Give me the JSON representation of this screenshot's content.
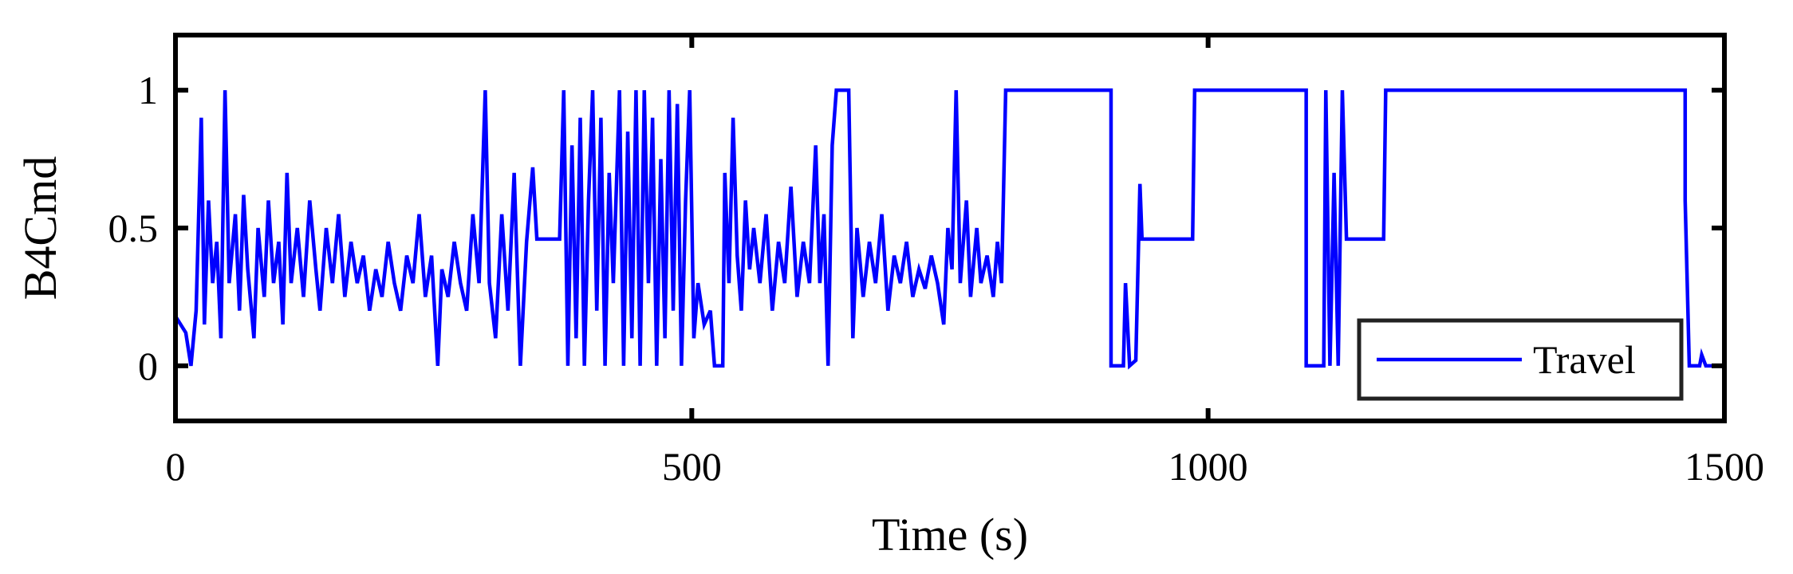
{
  "chart_data": {
    "type": "line",
    "xlabel": "Time (s)",
    "ylabel": "B4Cmd",
    "xlim": [
      0,
      1500
    ],
    "ylim": [
      -0.2,
      1.2
    ],
    "xticks": [
      0,
      500,
      1000,
      1500
    ],
    "yticks": [
      0,
      0.5,
      1
    ],
    "grid": false,
    "legend": "lower right",
    "x": [
      0,
      10,
      15,
      20,
      25,
      28,
      32,
      36,
      40,
      44,
      48,
      52,
      58,
      62,
      66,
      70,
      76,
      80,
      86,
      90,
      95,
      100,
      104,
      108,
      112,
      118,
      124,
      130,
      136,
      140,
      146,
      152,
      158,
      164,
      170,
      176,
      182,
      188,
      194,
      200,
      206,
      212,
      218,
      224,
      230,
      236,
      242,
      248,
      254,
      258,
      264,
      270,
      276,
      282,
      288,
      294,
      300,
      304,
      310,
      316,
      322,
      328,
      334,
      340,
      346,
      350,
      372,
      376,
      380,
      384,
      388,
      392,
      396,
      400,
      404,
      408,
      412,
      416,
      420,
      424,
      430,
      434,
      438,
      442,
      446,
      450,
      454,
      458,
      462,
      466,
      470,
      474,
      478,
      482,
      486,
      490,
      494,
      498,
      502,
      506,
      512,
      518,
      522,
      530,
      532,
      536,
      540,
      544,
      548,
      552,
      556,
      560,
      566,
      572,
      578,
      584,
      590,
      596,
      602,
      608,
      614,
      620,
      624,
      628,
      632,
      636,
      640,
      652,
      656,
      660,
      666,
      672,
      678,
      684,
      690,
      696,
      702,
      708,
      714,
      720,
      726,
      732,
      738,
      744,
      748,
      752,
      756,
      760,
      766,
      770,
      776,
      780,
      786,
      792,
      796,
      800,
      804,
      906,
      906,
      918,
      920,
      924,
      930,
      934,
      936,
      985,
      987,
      1095,
      1095,
      1112,
      1114,
      1118,
      1122,
      1126,
      1130,
      1134,
      1170,
      1172,
      1462,
      1462,
      1466,
      1476,
      1478,
      1482,
      1500
    ],
    "series": [
      {
        "name": "Travel",
        "color": "#0000ff",
        "values": [
          0.18,
          0.12,
          0,
          0.2,
          0.9,
          0.15,
          0.6,
          0.3,
          0.45,
          0.1,
          1,
          0.3,
          0.55,
          0.2,
          0.62,
          0.35,
          0.1,
          0.5,
          0.25,
          0.6,
          0.3,
          0.45,
          0.15,
          0.7,
          0.3,
          0.5,
          0.25,
          0.6,
          0.35,
          0.2,
          0.5,
          0.3,
          0.55,
          0.25,
          0.45,
          0.3,
          0.4,
          0.2,
          0.35,
          0.25,
          0.45,
          0.3,
          0.2,
          0.4,
          0.3,
          0.55,
          0.25,
          0.4,
          0,
          0.35,
          0.25,
          0.45,
          0.3,
          0.2,
          0.55,
          0.3,
          1,
          0.3,
          0.1,
          0.55,
          0.2,
          0.7,
          0,
          0.45,
          0.72,
          0.46,
          0.46,
          1,
          0,
          0.8,
          0.1,
          0.9,
          0,
          0.6,
          1,
          0.2,
          0.9,
          0,
          0.7,
          0.3,
          1,
          0,
          0.85,
          0.1,
          1,
          0,
          1,
          0.3,
          0.9,
          0,
          0.75,
          0.1,
          1,
          0.2,
          0.95,
          0,
          0.6,
          1,
          0.1,
          0.3,
          0.15,
          0.2,
          0,
          0,
          0.7,
          0.3,
          0.9,
          0.4,
          0.2,
          0.6,
          0.35,
          0.5,
          0.3,
          0.55,
          0.2,
          0.45,
          0.3,
          0.65,
          0.25,
          0.45,
          0.3,
          0.8,
          0.3,
          0.55,
          0,
          0.8,
          1,
          1,
          0.1,
          0.5,
          0.25,
          0.45,
          0.3,
          0.55,
          0.2,
          0.4,
          0.3,
          0.45,
          0.25,
          0.35,
          0.28,
          0.4,
          0.3,
          0.15,
          0.5,
          0.35,
          1,
          0.3,
          0.6,
          0.25,
          0.5,
          0.3,
          0.4,
          0.25,
          0.45,
          0.3,
          1,
          1,
          0,
          0,
          0.3,
          0,
          0.02,
          0.66,
          0.46,
          0.46,
          1,
          1,
          0,
          0,
          1,
          0,
          0.7,
          0,
          1,
          0.46,
          0.46,
          1,
          1,
          0.6,
          0,
          0,
          0.04,
          0,
          0
        ]
      }
    ]
  }
}
